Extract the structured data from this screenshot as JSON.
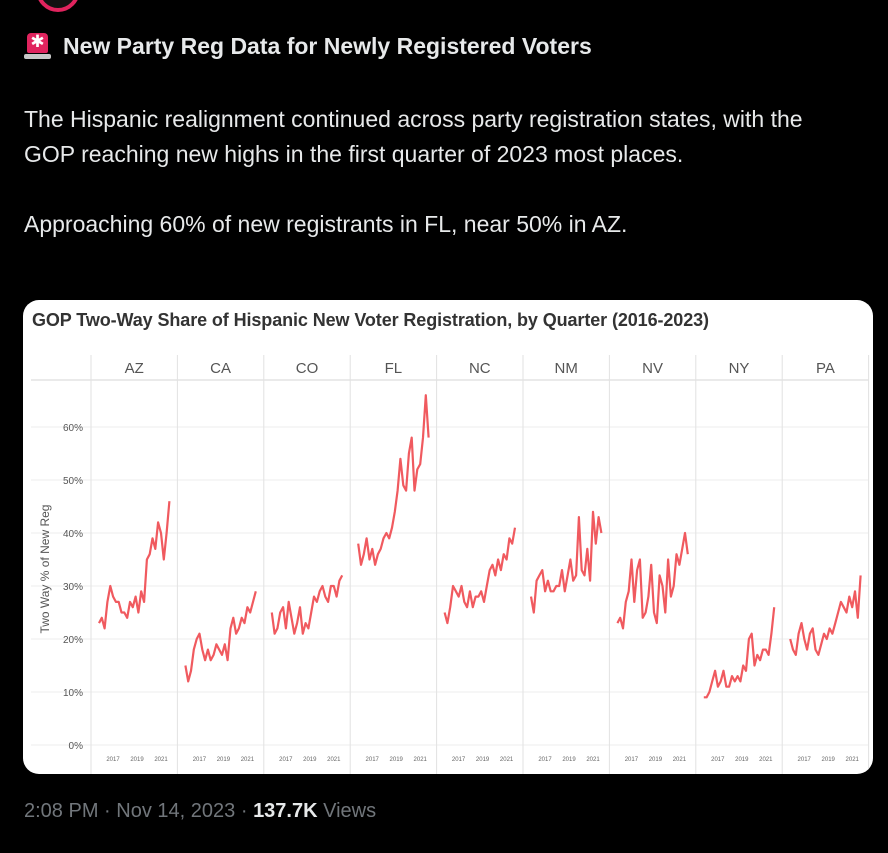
{
  "tweet": {
    "emoji_icon": "police-car-light-icon",
    "title": "New Party Reg Data for Newly Registered Voters",
    "paragraph1": "The Hispanic realignment continued across party registration states, with the GOP reaching new highs in the first quarter of 2023 most places.",
    "paragraph2": "Approaching 60% of new registrants in FL, near 50% in AZ.",
    "time": "2:08 PM",
    "separator": "·",
    "date": "Nov 14, 2023",
    "views_count": "137.7K",
    "views_label": "Views"
  },
  "colors": {
    "background": "#000000",
    "text": "#e7e9ea",
    "muted": "#71767b",
    "line": "#f05a5f",
    "card": "#ffffff"
  },
  "chart_data": {
    "type": "line",
    "title": "GOP Two-Way Share of Hispanic New Voter Registration, by Quarter (2016-2023)",
    "ylabel": "Two Way % of New Reg",
    "ylim": [
      0,
      70
    ],
    "yticks": [
      "0%",
      "10%",
      "20%",
      "30%",
      "40%",
      "50%",
      "60%"
    ],
    "ytick_values": [
      0,
      10,
      20,
      30,
      40,
      50,
      60
    ],
    "xticks": [
      "2017",
      "2019",
      "2021"
    ],
    "grid": true,
    "panels": [
      {
        "name": "AZ",
        "values": [
          23,
          24,
          22,
          27,
          30,
          28,
          27,
          27,
          25,
          25,
          24,
          27,
          26,
          28,
          25,
          29,
          27,
          35,
          36,
          39,
          37,
          42,
          40,
          35,
          40,
          46
        ]
      },
      {
        "name": "CA",
        "values": [
          15,
          12,
          14,
          18,
          20,
          21,
          18,
          16,
          18,
          16,
          17,
          19,
          18,
          17,
          19,
          16,
          22,
          24,
          21,
          22,
          24,
          23,
          26,
          25,
          27,
          29
        ]
      },
      {
        "name": "CO",
        "values": [
          25,
          21,
          22,
          25,
          26,
          22,
          27,
          24,
          21,
          23,
          26,
          21,
          23,
          22,
          25,
          28,
          27,
          29,
          30,
          28,
          27,
          30,
          30,
          28,
          31,
          32
        ]
      },
      {
        "name": "FL",
        "values": [
          38,
          34,
          36,
          39,
          35,
          37,
          34,
          36,
          37,
          39,
          40,
          39,
          41,
          44,
          48,
          54,
          49,
          48,
          55,
          58,
          48,
          52,
          53,
          58,
          66,
          58
        ]
      },
      {
        "name": "NC",
        "values": [
          25,
          23,
          26,
          30,
          29,
          28,
          30,
          27,
          26,
          29,
          26,
          28,
          28,
          29,
          27,
          30,
          33,
          34,
          32,
          35,
          33,
          36,
          35,
          39,
          38,
          41
        ]
      },
      {
        "name": "NM",
        "values": [
          28,
          25,
          31,
          32,
          33,
          29,
          31,
          29,
          29,
          30,
          30,
          33,
          29,
          32,
          35,
          31,
          32,
          43,
          33,
          32,
          37,
          31,
          44,
          38,
          43,
          40
        ]
      },
      {
        "name": "NV",
        "values": [
          23,
          24,
          22,
          27,
          29,
          35,
          27,
          33,
          35,
          24,
          25,
          28,
          34,
          25,
          23,
          32,
          30,
          25,
          35,
          28,
          30,
          36,
          34,
          37,
          40,
          36
        ]
      },
      {
        "name": "NY",
        "values": [
          9,
          9,
          10,
          12,
          14,
          11,
          12,
          14,
          11,
          11,
          13,
          12,
          13,
          12,
          15,
          14,
          20,
          21,
          15,
          17,
          16,
          18,
          18,
          17,
          21,
          26
        ]
      },
      {
        "name": "PA",
        "values": [
          20,
          18,
          17,
          21,
          23,
          20,
          18,
          21,
          22,
          18,
          17,
          19,
          21,
          20,
          22,
          21,
          23,
          25,
          27,
          26,
          25,
          28,
          26,
          29,
          24,
          32
        ]
      }
    ]
  }
}
